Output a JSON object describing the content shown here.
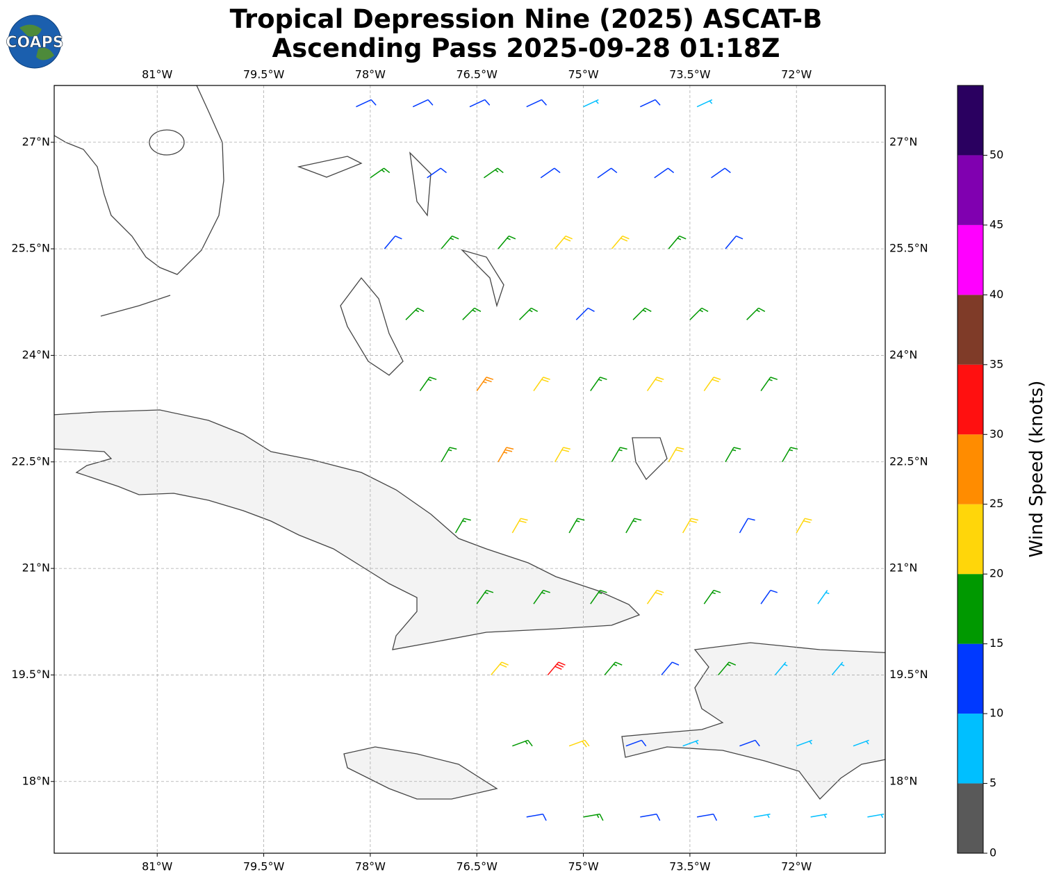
{
  "logo": "COAPS",
  "title": [
    "Tropical Depression Nine (2025) ASCAT-B",
    "Ascending Pass 2025-09-28 01:18Z"
  ],
  "map": {
    "xlim": [
      -82.45,
      -70.75
    ],
    "ylim": [
      16.99,
      27.8
    ],
    "xticks": [
      {
        "value": -81,
        "label": "81°W"
      },
      {
        "value": -79.5,
        "label": "79.5°W"
      },
      {
        "value": -78,
        "label": "78°W"
      },
      {
        "value": -76.5,
        "label": "76.5°W"
      },
      {
        "value": -75,
        "label": "75°W"
      },
      {
        "value": -73.5,
        "label": "73.5°W"
      },
      {
        "value": -72,
        "label": "72°W"
      }
    ],
    "yticks": [
      {
        "value": 18,
        "label": "18°N"
      },
      {
        "value": 19.5,
        "label": "19.5°N"
      },
      {
        "value": 21,
        "label": "21°N"
      },
      {
        "value": 22.5,
        "label": "22.5°N"
      },
      {
        "value": 24,
        "label": "24°N"
      },
      {
        "value": 25.5,
        "label": "25.5°N"
      },
      {
        "value": 27,
        "label": "27°N"
      }
    ],
    "grid": true
  },
  "barbs": {
    "lon": [
      -78.2,
      -77.4,
      -76.6,
      -75.8,
      -75.0,
      -74.2,
      -73.4,
      -78.0,
      -77.2,
      -76.4,
      -75.6,
      -74.8,
      -74.0,
      -73.2,
      -77.8,
      -77.0,
      -76.2,
      -75.4,
      -74.6,
      -73.8,
      -73.0,
      -77.5,
      -76.7,
      -75.9,
      -75.1,
      -74.3,
      -73.5,
      -72.7,
      -77.3,
      -76.5,
      -75.7,
      -74.9,
      -74.1,
      -73.3,
      -72.5,
      -77.0,
      -76.2,
      -75.4,
      -74.6,
      -73.8,
      -73.0,
      -72.2,
      -76.8,
      -76.0,
      -75.2,
      -74.4,
      -73.6,
      -72.8,
      -72.0,
      -76.5,
      -75.7,
      -74.9,
      -74.1,
      -73.3,
      -72.5,
      -71.7,
      -76.3,
      -75.5,
      -74.7,
      -73.9,
      -73.1,
      -72.3,
      -71.5,
      -76.0,
      -75.2,
      -74.4,
      -73.6,
      -72.8,
      -72.0,
      -71.2,
      -75.8,
      -75.0,
      -74.2,
      -73.4,
      -72.6,
      -71.8,
      -71.0
    ],
    "lat": [
      27.5,
      27.5,
      27.5,
      27.5,
      27.5,
      27.5,
      27.5,
      26.5,
      26.5,
      26.5,
      26.5,
      26.5,
      26.5,
      26.5,
      25.5,
      25.5,
      25.5,
      25.5,
      25.5,
      25.5,
      25.5,
      24.5,
      24.5,
      24.5,
      24.5,
      24.5,
      24.5,
      24.5,
      23.5,
      23.5,
      23.5,
      23.5,
      23.5,
      23.5,
      23.5,
      22.5,
      22.5,
      22.5,
      22.5,
      22.5,
      22.5,
      22.5,
      21.5,
      21.5,
      21.5,
      21.5,
      21.5,
      21.5,
      21.5,
      20.5,
      20.5,
      20.5,
      20.5,
      20.5,
      20.5,
      20.5,
      19.5,
      19.5,
      19.5,
      19.5,
      19.5,
      19.5,
      19.5,
      18.5,
      18.5,
      18.5,
      18.5,
      18.5,
      18.5,
      18.5,
      17.5,
      17.5,
      17.5,
      17.5,
      17.5,
      17.5,
      17.5
    ],
    "speed": [
      12,
      12,
      12,
      12,
      8,
      12,
      8,
      17,
      12,
      17,
      12,
      12,
      12,
      12,
      12,
      17,
      17,
      22,
      22,
      17,
      12,
      17,
      17,
      17,
      12,
      17,
      17,
      17,
      17,
      27,
      22,
      17,
      22,
      22,
      17,
      17,
      27,
      22,
      17,
      22,
      17,
      17,
      17,
      22,
      17,
      17,
      22,
      12,
      22,
      17,
      17,
      17,
      22,
      17,
      12,
      8,
      22,
      32,
      17,
      12,
      17,
      8,
      8,
      17,
      22,
      12,
      8,
      12,
      8,
      8,
      12,
      17,
      12,
      12,
      8,
      8,
      8
    ],
    "direction": [
      65,
      65,
      65,
      65,
      65,
      65,
      65,
      55,
      55,
      55,
      55,
      55,
      55,
      55,
      40,
      40,
      40,
      40,
      40,
      40,
      40,
      45,
      45,
      45,
      45,
      45,
      45,
      45,
      35,
      35,
      35,
      35,
      35,
      35,
      35,
      30,
      30,
      30,
      30,
      30,
      30,
      30,
      30,
      30,
      30,
      30,
      30,
      30,
      30,
      35,
      35,
      35,
      35,
      35,
      35,
      35,
      40,
      40,
      40,
      40,
      40,
      40,
      40,
      70,
      70,
      70,
      70,
      70,
      70,
      70,
      80,
      80,
      80,
      80,
      80,
      80,
      80
    ]
  },
  "colorbar": {
    "label": "Wind Speed (knots)",
    "lim": [
      0,
      55
    ],
    "bounds": [
      0,
      5,
      10,
      15,
      20,
      25,
      30,
      35,
      40,
      45,
      50,
      55
    ],
    "colors": [
      "#595959",
      "#00bfff",
      "#0039ff",
      "#009900",
      "#ffd60a",
      "#ff8c00",
      "#ff1010",
      "#7f3b28",
      "#ff00ff",
      "#8000b0",
      "#2a0060"
    ],
    "ticks": [
      0,
      5,
      10,
      15,
      20,
      25,
      30,
      35,
      40,
      45,
      50
    ]
  }
}
